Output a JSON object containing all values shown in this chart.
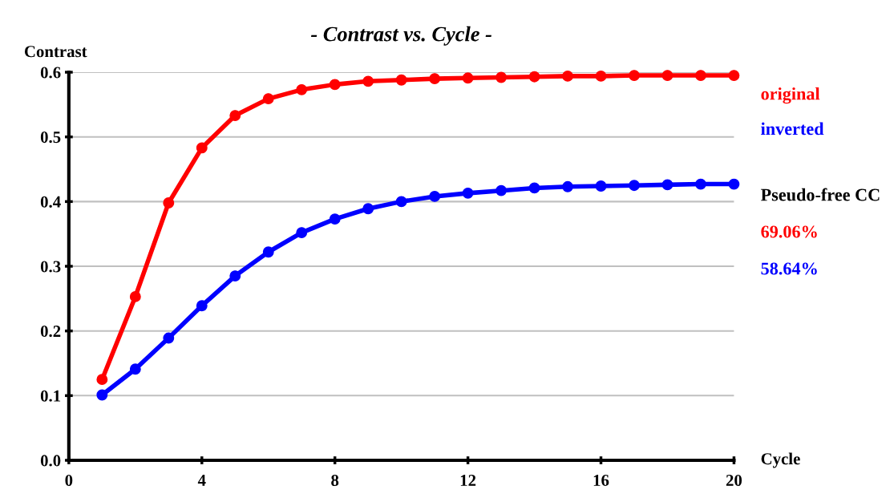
{
  "chart_data": {
    "type": "line",
    "title": "- Contrast vs. Cycle -",
    "xlabel": "Cycle",
    "ylabel": "Contrast",
    "x": [
      1,
      2,
      3,
      4,
      5,
      6,
      7,
      8,
      9,
      10,
      11,
      12,
      13,
      14,
      15,
      16,
      17,
      18,
      19,
      20
    ],
    "series": [
      {
        "name": "original",
        "color": "#ff0000",
        "values": [
          0.125,
          0.253,
          0.398,
          0.483,
          0.533,
          0.559,
          0.573,
          0.581,
          0.586,
          0.588,
          0.59,
          0.591,
          0.592,
          0.593,
          0.594,
          0.594,
          0.595,
          0.595,
          0.595,
          0.595
        ]
      },
      {
        "name": "inverted",
        "color": "#0000ff",
        "values": [
          0.101,
          0.141,
          0.189,
          0.239,
          0.285,
          0.322,
          0.352,
          0.373,
          0.389,
          0.4,
          0.408,
          0.413,
          0.417,
          0.421,
          0.423,
          0.424,
          0.425,
          0.426,
          0.427,
          0.427
        ]
      }
    ],
    "annotations": [
      "Pseudo-free CC",
      "69.06%",
      "58.64%"
    ],
    "xlim": [
      0,
      20
    ],
    "xticks": [
      0,
      4,
      8,
      12,
      16,
      20
    ],
    "ylim": [
      0,
      0.6
    ],
    "yticks": [
      {
        "value": 0,
        "label": "0.0"
      },
      0.1,
      0.2,
      0.3,
      0.4,
      0.5,
      0.6
    ],
    "grid": "y",
    "legend": "right",
    "marker": "circle",
    "line_style": "solid"
  }
}
